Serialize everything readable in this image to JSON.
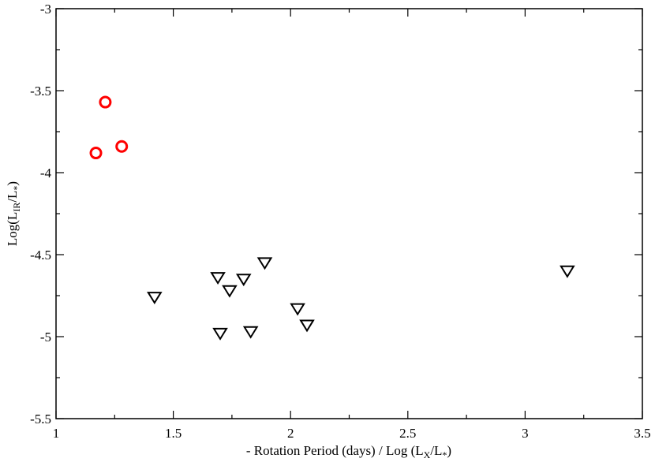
{
  "chart_data": {
    "type": "scatter",
    "title": "",
    "xlabel": {
      "main": "- Rotation Period (days) / Log (L",
      "sub1": "X",
      "mid": "/L",
      "sub2": "*",
      "end": ")"
    },
    "ylabel": {
      "main": "Log(L",
      "sub1": "IR",
      "mid": "/L",
      "sub2": "*",
      "end": ")"
    },
    "xlim": [
      1,
      3.5
    ],
    "ylim": [
      -5.5,
      -3
    ],
    "x_ticks": [
      1,
      1.5,
      2,
      2.5,
      3,
      3.5
    ],
    "x_tick_labels": [
      "1",
      "1.5",
      "2",
      "2.5",
      "3",
      "3.5"
    ],
    "y_ticks": [
      -3,
      -3.5,
      -4,
      -4.5,
      -5,
      -5.5
    ],
    "y_tick_labels": [
      "-3",
      "-3.5",
      "-4",
      "-4.5",
      "-5",
      "-5.5"
    ],
    "grid": false,
    "series": [
      {
        "marker": "circle",
        "color": "#ff0000",
        "points": [
          [
            1.17,
            -3.88
          ],
          [
            1.21,
            -3.57
          ],
          [
            1.28,
            -3.84
          ]
        ]
      },
      {
        "marker": "triangle-down",
        "color": "#000000",
        "points": [
          [
            1.42,
            -4.76
          ],
          [
            1.69,
            -4.64
          ],
          [
            1.7,
            -4.98
          ],
          [
            1.74,
            -4.72
          ],
          [
            1.8,
            -4.65
          ],
          [
            1.83,
            -4.97
          ],
          [
            1.89,
            -4.55
          ],
          [
            2.03,
            -4.83
          ],
          [
            2.07,
            -4.93
          ],
          [
            3.18,
            -4.6
          ]
        ]
      }
    ]
  }
}
